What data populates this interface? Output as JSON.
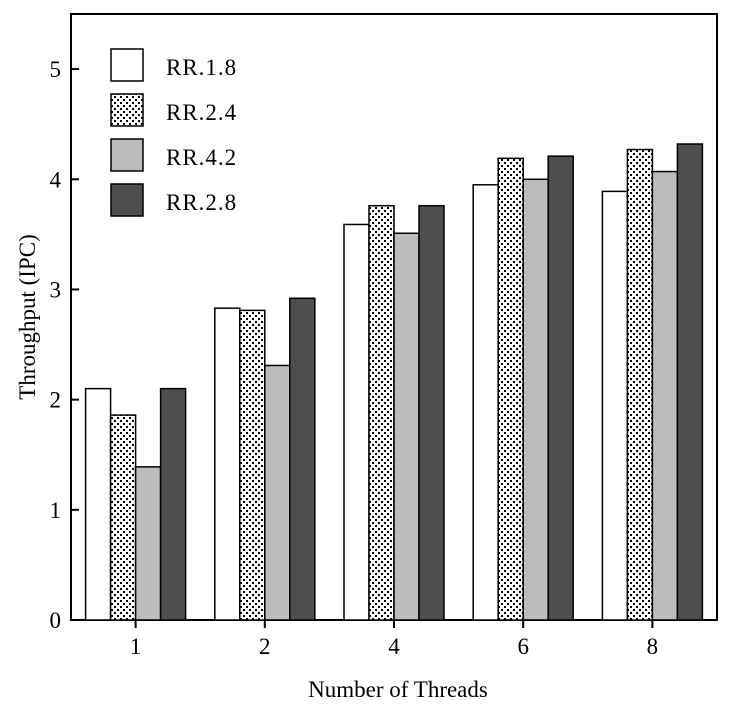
{
  "chart_data": {
    "type": "bar",
    "title": "",
    "xlabel": "Number of Threads",
    "ylabel": "Throughput (IPC)",
    "categories": [
      "1",
      "2",
      "4",
      "6",
      "8"
    ],
    "ylim": [
      0,
      5.5
    ],
    "yticks": [
      "0",
      "1",
      "2",
      "3",
      "4",
      "5"
    ],
    "grid": false,
    "legend_position": "top-left",
    "series": [
      {
        "name": "RR.1.8",
        "values": [
          2.1,
          2.83,
          3.59,
          3.95,
          3.89
        ],
        "fill": "white"
      },
      {
        "name": "RR.2.4",
        "values": [
          1.86,
          2.81,
          3.76,
          4.19,
          4.27
        ],
        "fill": "dotted"
      },
      {
        "name": "RR.4.2",
        "values": [
          1.39,
          2.31,
          3.51,
          4.0,
          4.07
        ],
        "fill": "light-gray"
      },
      {
        "name": "RR.2.8",
        "values": [
          2.1,
          2.92,
          3.76,
          4.21,
          4.32
        ],
        "fill": "dark-gray"
      }
    ]
  }
}
